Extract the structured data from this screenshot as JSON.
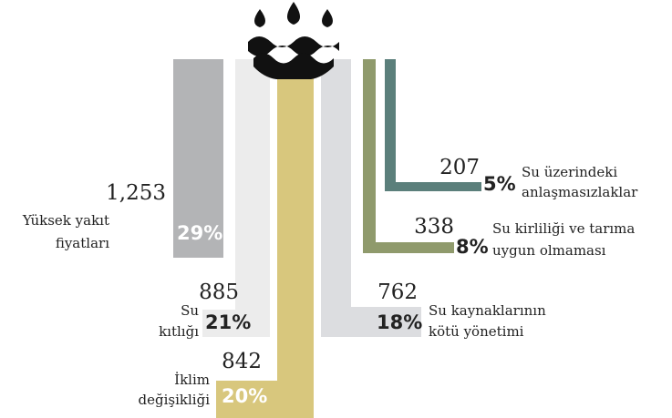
{
  "chart_data": {
    "type": "flow",
    "categories": [
      [
        "Yüksek yakıt",
        "fiyatları"
      ],
      [
        "Su",
        "kıtlığı"
      ],
      [
        "İklim",
        "değişikliği"
      ],
      [
        "Su kaynaklarının",
        "kötü yönetimi"
      ],
      [
        "Su kirliliği ve tarıma",
        "uygun olmaması"
      ],
      [
        "Su üzerindeki",
        "anlaşmasızlaklar"
      ]
    ],
    "values": [
      1253,
      885,
      842,
      762,
      338,
      207
    ],
    "value_labels": [
      "1,253",
      "885",
      "842",
      "762",
      "338",
      "207"
    ],
    "shares": [
      29,
      21,
      20,
      18,
      8,
      5
    ],
    "share_labels": [
      "29%",
      "21%",
      "20%",
      "18%",
      "8%",
      "5%"
    ],
    "colors": [
      "#b3b4b6",
      "#ececec",
      "#d8c77d",
      "#dcdde0",
      "#8f9a6c",
      "#5b7f7b"
    ]
  }
}
